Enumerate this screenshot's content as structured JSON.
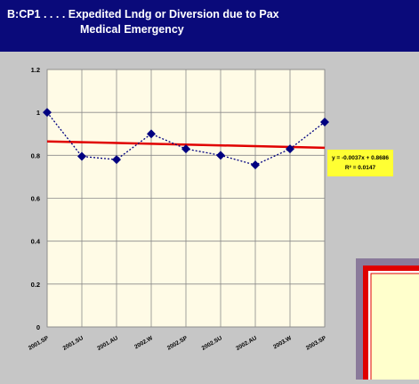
{
  "chart_data": {
    "type": "line",
    "title": "B:CP1 . . . . Expedited Lndg or Diversion due to Pax",
    "subtitle": "Medical Emergency",
    "categories": [
      "2001.SP",
      "2001.SU",
      "2001.AU",
      "2002.W",
      "2002.SP",
      "2002.SU",
      "2002.AU",
      "2003.W",
      "2003.SP"
    ],
    "series": [
      {
        "color": "#000080",
        "values": [
          1.0,
          0.795,
          0.78,
          0.9,
          0.83,
          0.8,
          0.755,
          0.83,
          0.955
        ]
      }
    ],
    "ylim": [
      0,
      1.2
    ],
    "yticks": [
      0,
      0.2,
      0.4,
      0.6,
      0.8,
      1,
      1.2
    ],
    "grid": true,
    "trendline": {
      "slope": -0.0037,
      "intercept": 0.8686,
      "color": "#e00000",
      "equation": "y = -0.0037x + 0.8686",
      "r2": "R² = 0.0147"
    }
  }
}
